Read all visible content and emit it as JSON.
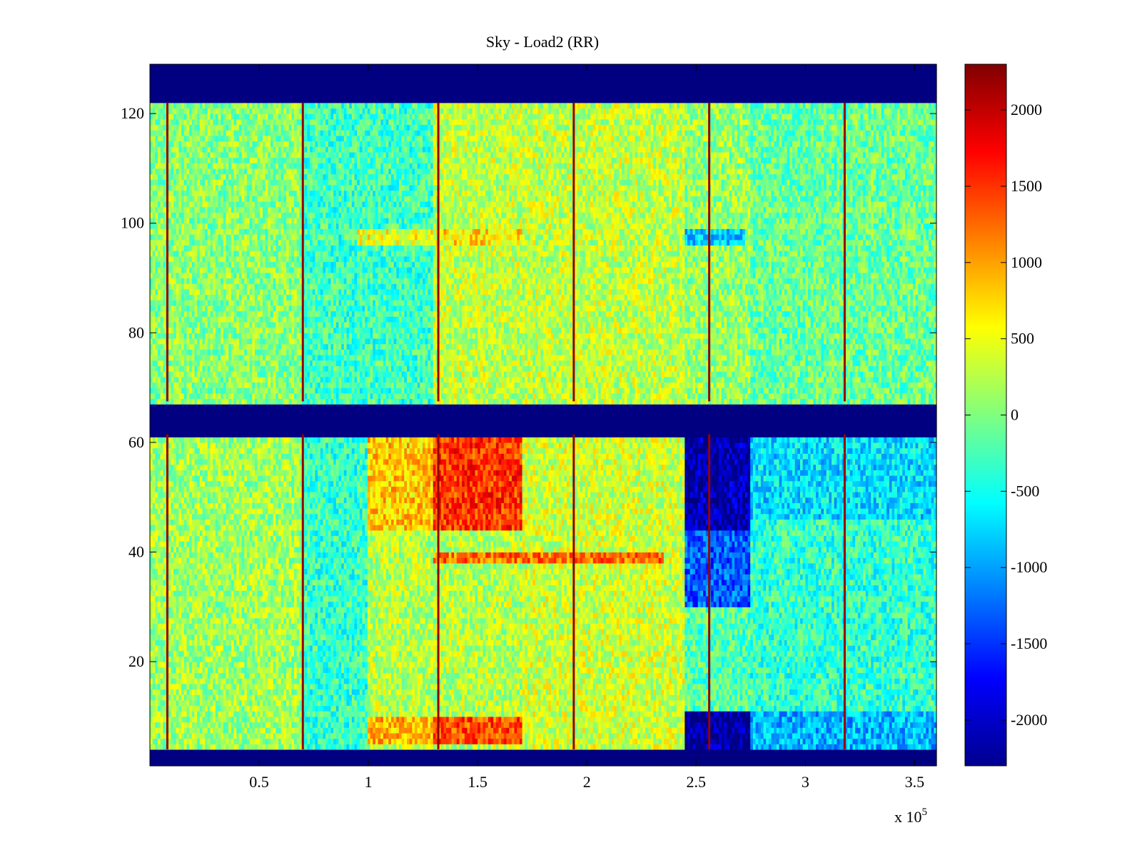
{
  "chart_data": {
    "type": "heatmap",
    "title": "Sky - Load2 (RR)",
    "xlabel": "",
    "ylabel": "",
    "x_multiplier_label": "x 10",
    "x_multiplier_exponent": "5",
    "xlim": [
      0,
      3.6
    ],
    "ylim": [
      1,
      129
    ],
    "x_ticks": [
      0.5,
      1,
      1.5,
      2,
      2.5,
      3,
      3.5
    ],
    "x_tick_labels": [
      "0.5",
      "1",
      "1.5",
      "2",
      "2.5",
      "3",
      "3.5"
    ],
    "y_ticks": [
      20,
      40,
      60,
      80,
      100,
      120
    ],
    "y_tick_labels": [
      "20",
      "40",
      "60",
      "80",
      "100",
      "120"
    ],
    "colorbar": {
      "colormap": "jet",
      "range": [
        -2300,
        2300
      ],
      "ticks": [
        2000,
        1500,
        1000,
        500,
        0,
        -500,
        -1000,
        -1500,
        -2000
      ],
      "tick_labels": [
        "2000",
        "1500",
        "1000",
        "500",
        "0",
        "-500",
        "-1000",
        "-1500",
        "-2000"
      ]
    },
    "masked_rows": [
      [
        1,
        4
      ],
      [
        61.5,
        67.5
      ],
      [
        122,
        129
      ]
    ],
    "masked_value": -2300,
    "spike_columns_x": [
      0.08,
      0.7,
      1.32,
      1.94,
      2.56,
      3.18
    ],
    "spike_value": 2200,
    "regions": [
      {
        "x": [
          0.0,
          0.7
        ],
        "y": [
          67.5,
          122
        ],
        "value": 50
      },
      {
        "x": [
          0.7,
          1.3
        ],
        "y": [
          67.5,
          122
        ],
        "value": -300
      },
      {
        "x": [
          1.3,
          2.45
        ],
        "y": [
          67.5,
          122
        ],
        "value": 300
      },
      {
        "x": [
          2.45,
          2.75
        ],
        "y": [
          67.5,
          122
        ],
        "value": 100
      },
      {
        "x": [
          2.75,
          3.6
        ],
        "y": [
          67.5,
          122
        ],
        "value": -100
      },
      {
        "x": [
          0.95,
          1.35
        ],
        "y": [
          96,
          99
        ],
        "value": 500
      },
      {
        "x": [
          1.35,
          1.7
        ],
        "y": [
          96,
          99
        ],
        "value": 700
      },
      {
        "x": [
          2.45,
          2.72
        ],
        "y": [
          96,
          99
        ],
        "value": -800
      },
      {
        "x": [
          0.0,
          0.7
        ],
        "y": [
          4,
          61.5
        ],
        "value": 150
      },
      {
        "x": [
          0.7,
          1.0
        ],
        "y": [
          4,
          61.5
        ],
        "value": -350
      },
      {
        "x": [
          1.0,
          1.3
        ],
        "y": [
          44,
          61.5
        ],
        "value": 800
      },
      {
        "x": [
          1.3,
          1.7
        ],
        "y": [
          44,
          61.5
        ],
        "value": 1500
      },
      {
        "x": [
          1.0,
          1.7
        ],
        "y": [
          4,
          44
        ],
        "value": 250
      },
      {
        "x": [
          1.7,
          2.45
        ],
        "y": [
          4,
          61.5
        ],
        "value": 350
      },
      {
        "x": [
          2.45,
          2.75
        ],
        "y": [
          44,
          61.5
        ],
        "value": -2100
      },
      {
        "x": [
          2.45,
          2.75
        ],
        "y": [
          30,
          44
        ],
        "value": -1300
      },
      {
        "x": [
          2.45,
          2.75
        ],
        "y": [
          11,
          30
        ],
        "value": -200
      },
      {
        "x": [
          2.75,
          3.6
        ],
        "y": [
          4,
          61.5
        ],
        "value": -350
      },
      {
        "x": [
          2.75,
          3.6
        ],
        "y": [
          46,
          61.5
        ],
        "value": -700
      },
      {
        "x": [
          1.0,
          1.3
        ],
        "y": [
          5,
          10
        ],
        "value": 900
      },
      {
        "x": [
          1.3,
          1.7
        ],
        "y": [
          5,
          10
        ],
        "value": 1400
      },
      {
        "x": [
          2.45,
          2.75
        ],
        "y": [
          4,
          11
        ],
        "value": -2200
      },
      {
        "x": [
          2.75,
          3.6
        ],
        "y": [
          4,
          11
        ],
        "value": -900
      },
      {
        "x": [
          1.3,
          2.35
        ],
        "y": [
          38,
          40
        ],
        "value": 1200
      }
    ]
  }
}
